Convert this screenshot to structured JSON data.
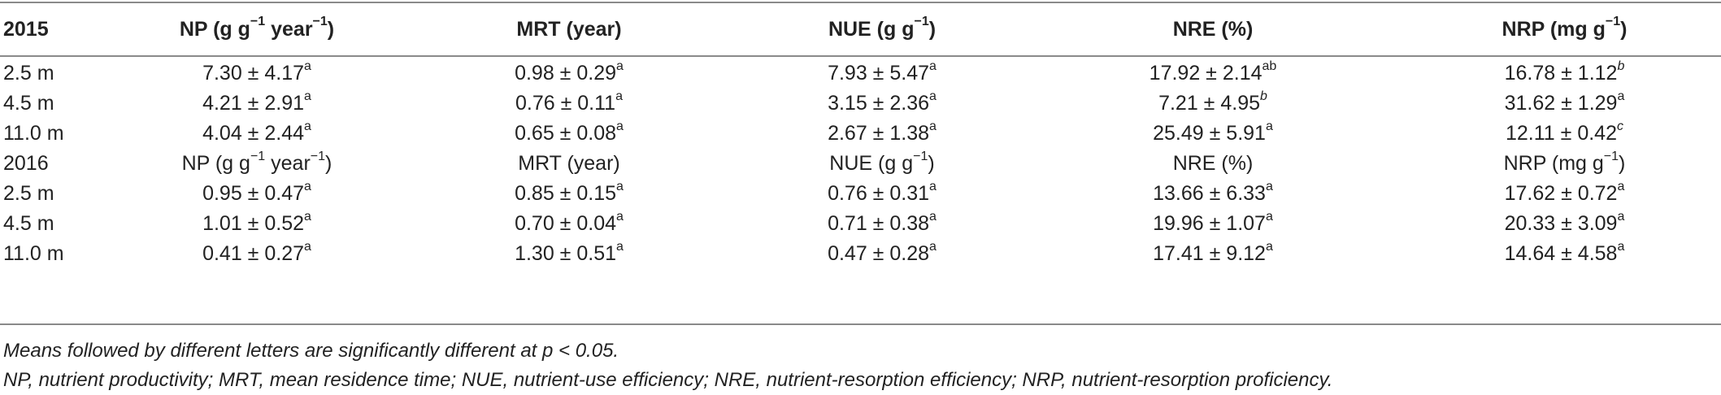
{
  "table": {
    "header": {
      "label": "2015",
      "cols": [
        {
          "main": "NP (g g",
          "sup": "−1",
          "rest": " year",
          "sup2": "−1",
          "close": ")"
        },
        {
          "main": "MRT (year)",
          "sup": "",
          "rest": "",
          "sup2": "",
          "close": ""
        },
        {
          "main": "NUE (g g",
          "sup": "−1",
          "rest": "",
          "sup2": "",
          "close": ")"
        },
        {
          "main": "NRE (%)",
          "sup": "",
          "rest": "",
          "sup2": "",
          "close": ""
        },
        {
          "main": "NRP (mg g",
          "sup": "−1",
          "rest": "",
          "sup2": "",
          "close": ")"
        }
      ]
    },
    "rows_2015": [
      {
        "label": "2.5 m",
        "cells": [
          {
            "v": "7.30 ± 4.17",
            "s": "a",
            "i": false
          },
          {
            "v": "0.98 ± 0.29",
            "s": "a",
            "i": false
          },
          {
            "v": "7.93 ± 5.47",
            "s": "a",
            "i": false
          },
          {
            "v": "17.92 ± 2.14",
            "s": "ab",
            "i": false
          },
          {
            "v": "16.78 ± 1.12",
            "s": "b",
            "i": true
          }
        ]
      },
      {
        "label": "4.5 m",
        "cells": [
          {
            "v": "4.21 ± 2.91",
            "s": "a",
            "i": false
          },
          {
            "v": "0.76 ± 0.11",
            "s": "a",
            "i": false
          },
          {
            "v": "3.15 ± 2.36",
            "s": "a",
            "i": false
          },
          {
            "v": "7.21 ± 4.95",
            "s": "b",
            "i": true
          },
          {
            "v": "31.62 ± 1.29",
            "s": "a",
            "i": false
          }
        ]
      },
      {
        "label": "11.0 m",
        "cells": [
          {
            "v": "4.04 ± 2.44",
            "s": "a",
            "i": false
          },
          {
            "v": "0.65 ± 0.08",
            "s": "a",
            "i": false
          },
          {
            "v": "2.67 ± 1.38",
            "s": "a",
            "i": false
          },
          {
            "v": "25.49 ± 5.91",
            "s": "a",
            "i": false
          },
          {
            "v": "12.11 ± 0.42",
            "s": "c",
            "i": true
          }
        ]
      }
    ],
    "subheader": {
      "label": "2016",
      "cols": [
        {
          "main": "NP (g g",
          "sup": "−1",
          "rest": " year",
          "sup2": "−1",
          "close": ")"
        },
        {
          "main": "MRT (year)",
          "sup": "",
          "rest": "",
          "sup2": "",
          "close": ""
        },
        {
          "main": "NUE (g g",
          "sup": "−1",
          "rest": "",
          "sup2": "",
          "close": ")"
        },
        {
          "main": "NRE (%)",
          "sup": "",
          "rest": "",
          "sup2": "",
          "close": ""
        },
        {
          "main": "NRP (mg g",
          "sup": "−1",
          "rest": "",
          "sup2": "",
          "close": ")"
        }
      ]
    },
    "rows_2016": [
      {
        "label": "2.5 m",
        "cells": [
          {
            "v": "0.95 ± 0.47",
            "s": "a",
            "i": false
          },
          {
            "v": "0.85 ± 0.15",
            "s": "a",
            "i": false
          },
          {
            "v": "0.76 ± 0.31",
            "s": "a",
            "i": false
          },
          {
            "v": "13.66 ± 6.33",
            "s": "a",
            "i": false
          },
          {
            "v": "17.62 ± 0.72",
            "s": "a",
            "i": false
          }
        ]
      },
      {
        "label": "4.5 m",
        "cells": [
          {
            "v": "1.01 ± 0.52",
            "s": "a",
            "i": false
          },
          {
            "v": "0.70 ± 0.04",
            "s": "a",
            "i": false
          },
          {
            "v": "0.71 ± 0.38",
            "s": "a",
            "i": false
          },
          {
            "v": "19.96 ± 1.07",
            "s": "a",
            "i": false
          },
          {
            "v": "20.33 ± 3.09",
            "s": "a",
            "i": false
          }
        ]
      },
      {
        "label": "11.0 m",
        "cells": [
          {
            "v": "0.41 ± 0.27",
            "s": "a",
            "i": false
          },
          {
            "v": "1.30 ± 0.51",
            "s": "a",
            "i": false
          },
          {
            "v": "0.47 ± 0.28",
            "s": "a",
            "i": false
          },
          {
            "v": "17.41 ± 9.12",
            "s": "a",
            "i": false
          },
          {
            "v": "14.64 ± 4.58",
            "s": "a",
            "i": false
          }
        ]
      }
    ]
  },
  "notes": {
    "line1": "Means followed by different letters are significantly different at p < 0.05.",
    "line2": "NP, nutrient productivity; MRT, mean residence time; NUE, nutrient-use efficiency; NRE, nutrient-resorption efficiency; NRP, nutrient-resorption proficiency."
  }
}
